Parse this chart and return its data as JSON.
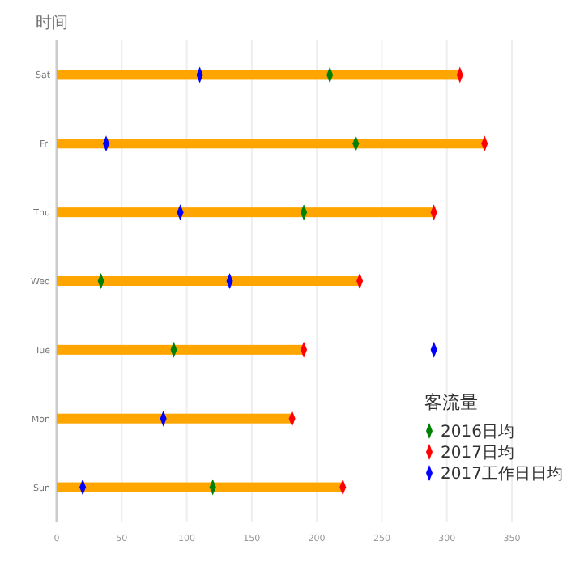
{
  "chart_data": {
    "type": "bar",
    "orientation": "horizontal",
    "ylabel": "时间",
    "legend_title": "客流量",
    "legend": "bottom right",
    "grid": "x",
    "marker": "diamond",
    "categories": [
      "Sat",
      "Fri",
      "Thu",
      "Wed",
      "Tue",
      "Mon",
      "Sun"
    ],
    "xlim": [
      0,
      350
    ],
    "xticks": [
      0,
      50,
      100,
      150,
      200,
      250,
      300,
      350
    ],
    "series": [
      {
        "color": "#ffa500",
        "values": [
          310,
          329,
          290,
          233,
          190,
          181,
          220
        ]
      },
      {
        "type": "scatter",
        "name": "2016日均",
        "color": "#008000",
        "values": [
          210,
          230,
          190,
          34,
          90,
          null,
          120
        ]
      },
      {
        "type": "scatter",
        "name": "2017日均",
        "color": "#ff0000",
        "values": [
          310,
          329,
          290,
          233,
          190,
          181,
          220
        ]
      },
      {
        "type": "scatter",
        "name": "2017工作日日均",
        "color": "#0000ff",
        "values": [
          110,
          38,
          95,
          133,
          290,
          82,
          20
        ]
      }
    ]
  }
}
